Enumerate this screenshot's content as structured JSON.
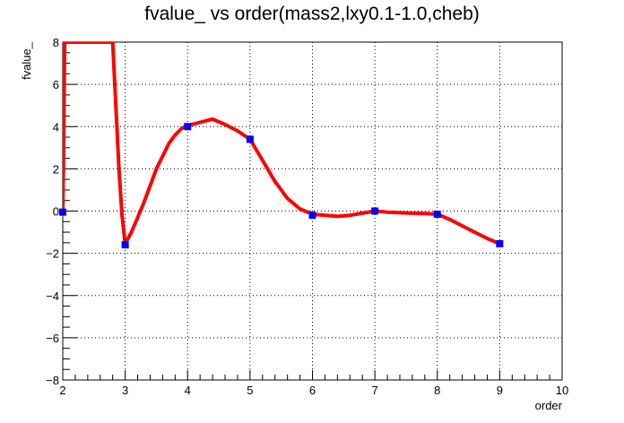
{
  "chart_data": {
    "type": "line",
    "title": "fvalue_ vs order(mass2,lxy0.1-1.0,cheb)",
    "xlabel": "order",
    "ylabel": "fvalue_",
    "xlim": [
      2,
      10
    ],
    "ylim": [
      -8,
      8
    ],
    "x_ticks": [
      "2",
      "3",
      "4",
      "5",
      "6",
      "7",
      "8",
      "9",
      "10"
    ],
    "y_ticks": [
      "−8",
      "−6",
      "−4",
      "−2",
      "0",
      "2",
      "4",
      "6",
      "8"
    ],
    "grid": true,
    "markers": {
      "x": [
        2,
        3,
        4,
        5,
        6,
        7,
        8,
        9
      ],
      "y": [
        -0.05,
        -1.6,
        4.0,
        3.4,
        -0.2,
        0.0,
        -0.15,
        -1.55
      ],
      "color": "#0000ff"
    },
    "curve": {
      "x": [
        2.0,
        2.01,
        2.02,
        2.03,
        2.04,
        2.8,
        2.85,
        2.9,
        2.95,
        3.0,
        3.1,
        3.2,
        3.3,
        3.4,
        3.5,
        3.6,
        3.7,
        3.8,
        3.9,
        4.0,
        4.2,
        4.4,
        4.6,
        4.8,
        5.0,
        5.2,
        5.4,
        5.6,
        5.8,
        6.0,
        6.2,
        6.4,
        6.6,
        6.8,
        7.0,
        7.2,
        7.4,
        7.6,
        7.8,
        8.0,
        8.2,
        8.4,
        8.6,
        8.8,
        9.0
      ],
      "y": [
        -0.05,
        2.0,
        5.0,
        8.0,
        8.0,
        8.0,
        5.0,
        2.0,
        -0.2,
        -1.55,
        -1.0,
        -0.3,
        0.4,
        1.2,
        2.0,
        2.6,
        3.2,
        3.6,
        3.9,
        4.05,
        4.2,
        4.35,
        4.1,
        3.8,
        3.4,
        2.4,
        1.4,
        0.6,
        0.1,
        -0.15,
        -0.2,
        -0.25,
        -0.2,
        -0.1,
        0.0,
        -0.05,
        -0.08,
        -0.1,
        -0.12,
        -0.15,
        -0.4,
        -0.7,
        -1.0,
        -1.3,
        -1.55
      ],
      "color": "#ff0000"
    }
  }
}
